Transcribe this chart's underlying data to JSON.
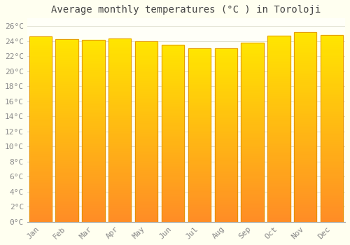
{
  "title": "Average monthly temperatures (°C ) in Toroloji",
  "months": [
    "Jan",
    "Feb",
    "Mar",
    "Apr",
    "May",
    "Jun",
    "Jul",
    "Aug",
    "Sep",
    "Oct",
    "Nov",
    "Dec"
  ],
  "temperatures": [
    24.6,
    24.2,
    24.1,
    24.3,
    24.0,
    23.5,
    23.0,
    23.0,
    23.8,
    24.7,
    25.2,
    24.8
  ],
  "bar_color_top": "#FFB347",
  "bar_color_bottom": "#FFA500",
  "bar_color_mid": "#FFD080",
  "bar_edge_color": "#E09000",
  "background_color": "#FFFFF0",
  "plot_bg_color": "#FFFFF8",
  "grid_color": "#DDDDCC",
  "ylim": [
    0,
    27
  ],
  "ytick_step": 2,
  "title_fontsize": 10,
  "tick_fontsize": 8,
  "title_color": "#444444",
  "tick_color": "#888888",
  "bar_width": 0.85
}
